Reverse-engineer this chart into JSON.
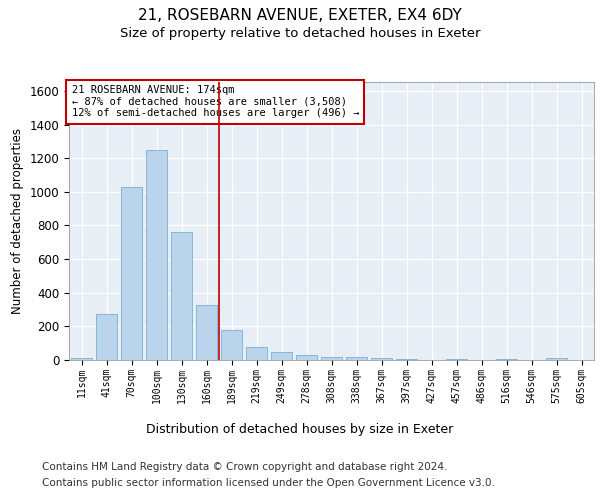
{
  "title_line1": "21, ROSEBARN AVENUE, EXETER, EX4 6DY",
  "title_line2": "Size of property relative to detached houses in Exeter",
  "xlabel": "Distribution of detached houses by size in Exeter",
  "ylabel": "Number of detached properties",
  "bar_color": "#bad4ec",
  "bar_edge_color": "#7aafd4",
  "background_color": "#e8eef6",
  "categories": [
    "11sqm",
    "41sqm",
    "70sqm",
    "100sqm",
    "130sqm",
    "160sqm",
    "189sqm",
    "219sqm",
    "249sqm",
    "278sqm",
    "308sqm",
    "338sqm",
    "367sqm",
    "397sqm",
    "427sqm",
    "457sqm",
    "486sqm",
    "516sqm",
    "546sqm",
    "575sqm",
    "605sqm"
  ],
  "values": [
    10,
    275,
    1030,
    1250,
    760,
    330,
    180,
    80,
    45,
    30,
    20,
    15,
    10,
    5,
    0,
    5,
    0,
    5,
    0,
    10,
    0
  ],
  "ylim": [
    0,
    1650
  ],
  "yticks": [
    0,
    200,
    400,
    600,
    800,
    1000,
    1200,
    1400,
    1600
  ],
  "vline_x": 5.5,
  "vline_color": "#c00000",
  "annotation_text": "21 ROSEBARN AVENUE: 174sqm\n← 87% of detached houses are smaller (3,508)\n12% of semi-detached houses are larger (496) →",
  "annotation_box_color": "white",
  "annotation_box_edge_color": "#c00000",
  "footer_line1": "Contains HM Land Registry data © Crown copyright and database right 2024.",
  "footer_line2": "Contains public sector information licensed under the Open Government Licence v3.0.",
  "title_fontsize": 11,
  "subtitle_fontsize": 9.5,
  "footer_fontsize": 7.5,
  "ylabel_fontsize": 8.5,
  "xlabel_fontsize": 9
}
